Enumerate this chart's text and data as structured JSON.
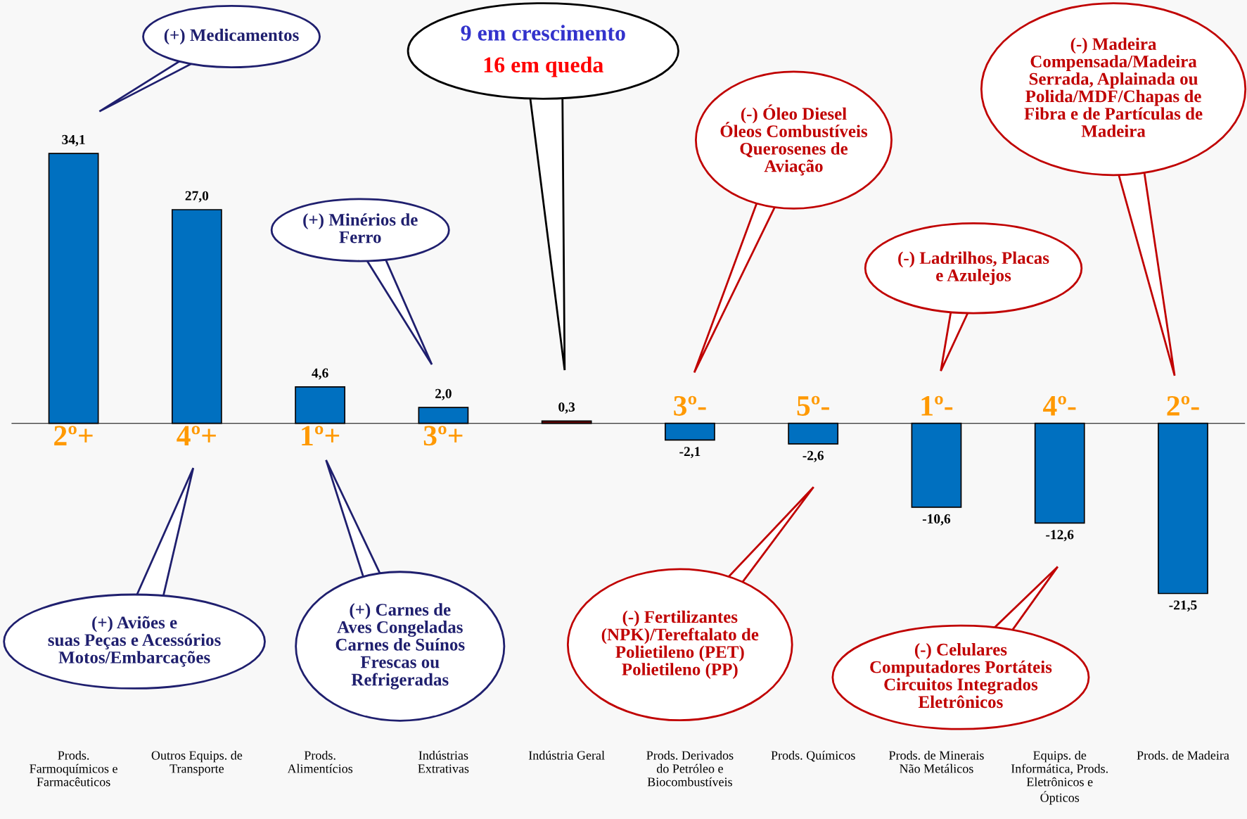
{
  "chart_data": {
    "type": "bar",
    "categories": [
      "Prods.\nFarmoquímicos e\nFarmacêuticos",
      "Outros Equips. de\nTransporte",
      "Prods.\nAlimentícios",
      "Indústrias\nExtrativas",
      "Indústria Geral",
      "Prods. Derivados\ndo Petróleo e\nBiocombustíveis",
      "Prods. Químicos",
      "Prods. de Minerais\nNão Metálicos",
      "Equips. de\nInformática, Prods.\nEletrônicos e\nÓpticos",
      "Prods. de Madeira"
    ],
    "values": [
      34.1,
      27.0,
      4.6,
      2.0,
      0.3,
      -2.1,
      -2.6,
      -10.6,
      -12.6,
      -21.5
    ],
    "colors": [
      "#0070c0",
      "#0070c0",
      "#0070c0",
      "#0070c0",
      "#7f0000",
      "#0070c0",
      "#0070c0",
      "#0070c0",
      "#0070c0",
      "#0070c0"
    ],
    "value_labels": [
      "34,1",
      "27,0",
      "4,6",
      "2,0",
      "0,3",
      "-2,1",
      "-2,6",
      "-10,6",
      "-12,6",
      "-21,5"
    ],
    "ylim": [
      -50,
      53.5
    ],
    "tick_labels": "x",
    "grid": false,
    "legend": false,
    "annotations": [
      "(+) Medicamentos",
      "(+) Aviões e\nsuas Peças e Acessórios\nMotos/Embarcações",
      "(+) Carnes de\nAves Congeladas\nCarnes de Suínos\nFrescas ou\nRefrigeradas",
      "(+) Minérios de\nFerro",
      "9 em crescimento",
      "16 em queda",
      "(-) Óleo Diesel\nÓleos Combustíveis\nQuerosenes de\nAviação",
      "(-) Fertilizantes\n(NPK)/Tereftalato de\nPolietileno (PET)\nPolietileno (PP)",
      "(-) Ladrilhos, Placas\ne Azulejos",
      "(-) Celulares\nComputadores Portáteis\nCircuitos Integrados\nEletrônicos",
      "(-) Madeira\nCompensada/Madeira\nSerrada, Aplainada ou\nPolida/MDF/Chapas de\nFibra e de Partículas de\nMadeira",
      {
        "text": "2º+",
        "x": "Prods.\nFarmoquímicos e\nFarmacêuticos",
        "y": 0
      },
      {
        "text": "4º+",
        "x": "Outros Equips. de\nTransporte",
        "y": 0
      },
      {
        "text": "1º+",
        "x": "Prods.\nAlimentícios",
        "y": 0
      },
      {
        "text": "3º+",
        "x": "Indústrias\nExtrativas",
        "y": 0
      },
      {
        "text": "3º-",
        "x": "Prods. Derivados\ndo Petróleo e\nBiocombustíveis",
        "y": 0
      },
      {
        "text": "5º-",
        "x": "Prods. Químicos",
        "y": 0
      },
      {
        "text": "1º-",
        "x": "Prods. de Minerais\nNão Metálicos",
        "y": 0
      },
      {
        "text": "4º-",
        "x": "Equips. de\nInformática, Prods.\nEletrônicos e\nÓpticos",
        "y": 0
      },
      {
        "text": "2º-",
        "x": "Prods. de Madeira",
        "y": 0
      }
    ]
  }
}
